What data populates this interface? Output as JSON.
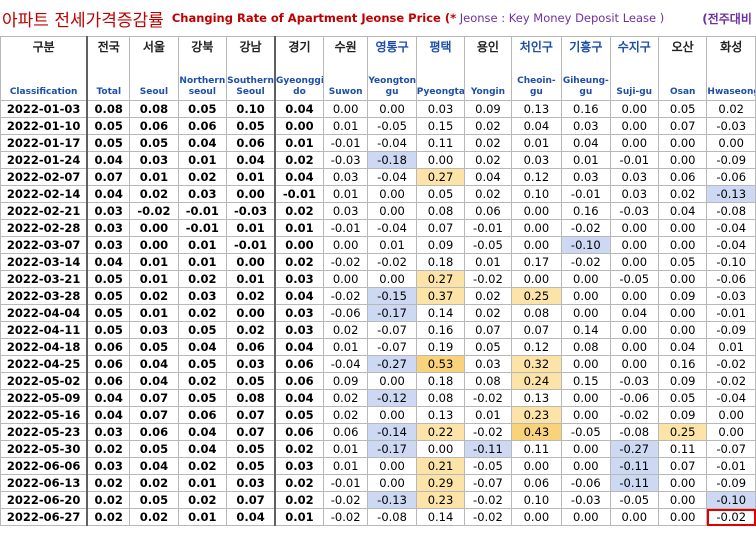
{
  "title": {
    "korean": "아파트 전세가격증감률",
    "english": "Changing Rate of Apartment Jeonse Price",
    "note_star": "(*",
    "note_text": " Jeonse : Key Money Deposit Lease )",
    "unit": "(전주대비 : %)"
  },
  "columns": [
    {
      "ko": "구분",
      "en": "Classification"
    },
    {
      "ko": "전국",
      "en": "Total"
    },
    {
      "ko": "서울",
      "en": "Seoul"
    },
    {
      "ko": "강북",
      "en": "Northern seoul"
    },
    {
      "ko": "강남",
      "en": "Southern Seoul"
    },
    {
      "ko": "경기",
      "en": "Gyeonggi-do"
    },
    {
      "ko": "수원",
      "en": "Suwon"
    },
    {
      "ko": "영통구",
      "en": "Yeongtong-gu"
    },
    {
      "ko": "평택",
      "en": "Pyeongtaek"
    },
    {
      "ko": "용인",
      "en": "Yongin"
    },
    {
      "ko": "처인구",
      "en": "Cheoin-gu"
    },
    {
      "ko": "기흥구",
      "en": "Giheung-gu"
    },
    {
      "ko": "수지구",
      "en": "Suji-gu"
    },
    {
      "ko": "오산",
      "en": "Osan"
    },
    {
      "ko": "화성",
      "en": "Hwaseong"
    }
  ],
  "rows": [
    {
      "date": "2022-01-03",
      "v": [
        "0.08",
        "0.08",
        "0.05",
        "0.10",
        "0.04",
        "0.00",
        "0.00",
        "0.03",
        "0.09",
        "0.13",
        "0.16",
        "0.00",
        "0.05",
        "0.02"
      ]
    },
    {
      "date": "2022-01-10",
      "v": [
        "0.05",
        "0.06",
        "0.06",
        "0.05",
        "0.00",
        "0.01",
        "-0.05",
        "0.15",
        "0.02",
        "0.04",
        "0.03",
        "0.00",
        "0.07",
        "-0.03"
      ]
    },
    {
      "date": "2022-01-17",
      "v": [
        "0.05",
        "0.05",
        "0.04",
        "0.06",
        "0.01",
        "-0.01",
        "-0.04",
        "0.11",
        "0.02",
        "0.01",
        "0.04",
        "0.00",
        "0.00",
        "0.00"
      ]
    },
    {
      "date": "2022-01-24",
      "v": [
        "0.04",
        "0.03",
        "0.01",
        "0.04",
        "0.02",
        "-0.03",
        "-0.18",
        "0.00",
        "0.02",
        "0.03",
        "0.01",
        "-0.01",
        "0.00",
        "-0.09"
      ]
    },
    {
      "date": "2022-02-07",
      "v": [
        "0.07",
        "0.01",
        "0.02",
        "0.01",
        "0.04",
        "0.03",
        "-0.04",
        "0.27",
        "0.04",
        "0.12",
        "0.03",
        "0.03",
        "0.06",
        "-0.06"
      ]
    },
    {
      "date": "2022-02-14",
      "v": [
        "0.04",
        "0.02",
        "0.03",
        "0.00",
        "-0.01",
        "0.01",
        "0.00",
        "0.05",
        "0.02",
        "0.10",
        "-0.01",
        "0.03",
        "0.02",
        "-0.13"
      ]
    },
    {
      "date": "2022-02-21",
      "v": [
        "0.03",
        "-0.02",
        "-0.01",
        "-0.03",
        "0.02",
        "0.03",
        "0.00",
        "0.08",
        "0.06",
        "0.00",
        "0.16",
        "-0.03",
        "0.04",
        "-0.08"
      ]
    },
    {
      "date": "2022-02-28",
      "v": [
        "0.03",
        "0.00",
        "-0.01",
        "0.01",
        "0.01",
        "-0.01",
        "-0.04",
        "0.07",
        "-0.01",
        "0.00",
        "-0.02",
        "0.00",
        "0.00",
        "-0.04"
      ]
    },
    {
      "date": "2022-03-07",
      "v": [
        "0.03",
        "0.00",
        "0.01",
        "-0.01",
        "0.00",
        "0.00",
        "0.01",
        "0.09",
        "-0.05",
        "0.00",
        "-0.10",
        "0.00",
        "0.00",
        "-0.04"
      ]
    },
    {
      "date": "2022-03-14",
      "v": [
        "0.04",
        "0.01",
        "0.01",
        "0.00",
        "0.02",
        "-0.02",
        "-0.02",
        "0.18",
        "0.01",
        "0.17",
        "-0.02",
        "0.00",
        "0.05",
        "-0.10"
      ]
    },
    {
      "date": "2022-03-21",
      "v": [
        "0.05",
        "0.01",
        "0.02",
        "0.01",
        "0.03",
        "0.00",
        "0.00",
        "0.27",
        "-0.02",
        "0.00",
        "0.00",
        "-0.05",
        "0.00",
        "-0.06"
      ]
    },
    {
      "date": "2022-03-28",
      "v": [
        "0.05",
        "0.02",
        "0.03",
        "0.02",
        "0.04",
        "-0.02",
        "-0.15",
        "0.37",
        "0.02",
        "0.25",
        "0.00",
        "0.00",
        "0.09",
        "-0.03"
      ]
    },
    {
      "date": "2022-04-04",
      "v": [
        "0.05",
        "0.01",
        "0.02",
        "0.00",
        "0.03",
        "-0.06",
        "-0.17",
        "0.14",
        "0.02",
        "0.08",
        "0.00",
        "0.04",
        "0.00",
        "-0.01"
      ]
    },
    {
      "date": "2022-04-11",
      "v": [
        "0.05",
        "0.03",
        "0.05",
        "0.02",
        "0.03",
        "0.02",
        "-0.07",
        "0.16",
        "0.07",
        "0.07",
        "0.14",
        "0.00",
        "0.00",
        "-0.09"
      ]
    },
    {
      "date": "2022-04-18",
      "v": [
        "0.06",
        "0.05",
        "0.04",
        "0.06",
        "0.04",
        "0.01",
        "-0.07",
        "0.19",
        "0.05",
        "0.12",
        "0.08",
        "0.00",
        "0.04",
        "0.01"
      ]
    },
    {
      "date": "2022-04-25",
      "v": [
        "0.06",
        "0.04",
        "0.05",
        "0.03",
        "0.06",
        "-0.04",
        "-0.27",
        "0.53",
        "0.03",
        "0.32",
        "0.00",
        "0.00",
        "0.16",
        "-0.02"
      ]
    },
    {
      "date": "2022-05-02",
      "v": [
        "0.06",
        "0.04",
        "0.02",
        "0.05",
        "0.06",
        "0.09",
        "0.00",
        "0.18",
        "0.08",
        "0.24",
        "0.15",
        "-0.03",
        "0.09",
        "-0.02"
      ]
    },
    {
      "date": "2022-05-09",
      "v": [
        "0.04",
        "0.07",
        "0.05",
        "0.08",
        "0.04",
        "0.02",
        "-0.12",
        "0.08",
        "-0.02",
        "0.13",
        "0.00",
        "-0.06",
        "0.05",
        "-0.04"
      ]
    },
    {
      "date": "2022-05-16",
      "v": [
        "0.04",
        "0.07",
        "0.06",
        "0.07",
        "0.05",
        "0.02",
        "0.00",
        "0.13",
        "0.01",
        "0.23",
        "0.00",
        "-0.02",
        "0.09",
        "0.00"
      ]
    },
    {
      "date": "2022-05-23",
      "v": [
        "0.03",
        "0.06",
        "0.04",
        "0.07",
        "0.06",
        "0.06",
        "-0.14",
        "0.22",
        "-0.02",
        "0.43",
        "-0.05",
        "-0.08",
        "0.25",
        "0.00"
      ]
    },
    {
      "date": "2022-05-30",
      "v": [
        "0.02",
        "0.05",
        "0.04",
        "0.05",
        "0.02",
        "0.01",
        "-0.17",
        "0.00",
        "-0.11",
        "0.11",
        "0.00",
        "-0.27",
        "0.11",
        "-0.07"
      ]
    },
    {
      "date": "2022-06-06",
      "v": [
        "0.03",
        "0.04",
        "0.02",
        "0.05",
        "0.03",
        "0.01",
        "0.00",
        "0.21",
        "-0.05",
        "0.00",
        "0.00",
        "-0.11",
        "0.07",
        "-0.01"
      ]
    },
    {
      "date": "2022-06-13",
      "v": [
        "0.02",
        "0.02",
        "0.01",
        "0.03",
        "0.02",
        "-0.01",
        "0.00",
        "0.29",
        "-0.07",
        "0.06",
        "-0.06",
        "-0.11",
        "0.00",
        "-0.09"
      ]
    },
    {
      "date": "2022-06-20",
      "v": [
        "0.02",
        "0.05",
        "0.02",
        "0.07",
        "0.02",
        "-0.02",
        "-0.13",
        "0.23",
        "-0.02",
        "0.10",
        "-0.03",
        "-0.05",
        "0.00",
        "-0.10"
      ]
    },
    {
      "date": "2022-06-27",
      "v": [
        "0.02",
        "0.02",
        "0.01",
        "0.04",
        "0.01",
        "-0.02",
        "-0.08",
        "0.14",
        "-0.02",
        "0.00",
        "0.00",
        "0.00",
        "0.00",
        "-0.02"
      ]
    }
  ],
  "highlight_colors": {
    "negative": "#cdd9f3",
    "positive": "#fce3a8",
    "strong_positive": "#f9d37a",
    "box": "#e00000"
  }
}
